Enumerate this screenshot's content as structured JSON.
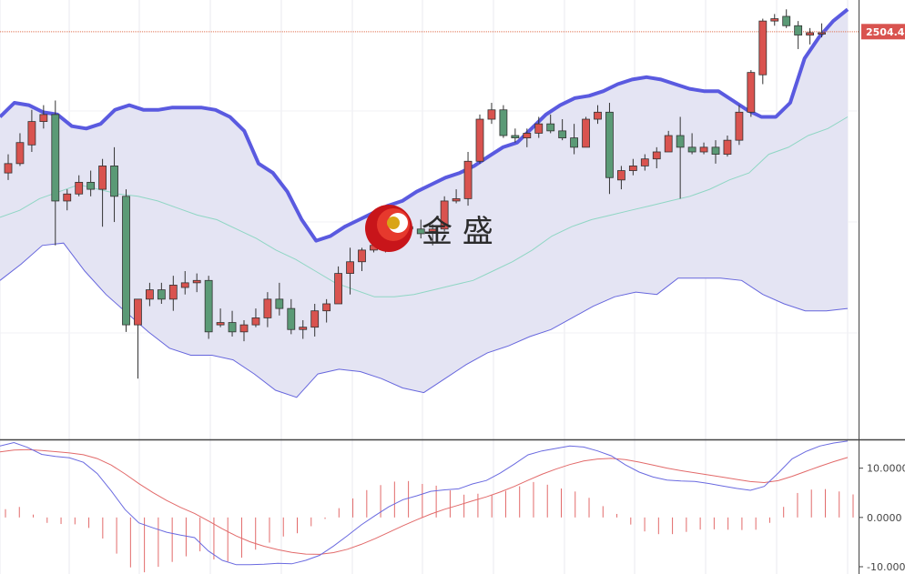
{
  "watermark": {
    "text": "金 盛"
  },
  "colors": {
    "up": "#d9534f",
    "down": "#5b9a76",
    "band_fill": "#e4e4f3",
    "upper_band": "#5a5ae0",
    "lower_band": "#6666dd",
    "middle_band": "#8fd6c4",
    "price_line": "#e07050",
    "price_tag": "#d9534f",
    "dif_line": "#6a6ae0",
    "dea_line": "#e26a6a",
    "hist": "#e26a6a",
    "grid": "#e9e9ef",
    "axis": "#444444"
  },
  "chart_data": [
    {
      "type": "candlestick",
      "title": "",
      "current_price_label": "2504.44",
      "current_price": 2504.44,
      "y_range": [
        2330,
        2518
      ],
      "overlays": [
        "bollinger_upper",
        "bollinger_middle",
        "bollinger_lower"
      ],
      "candles": [
        [
          2444,
          2452,
          2441,
          2448
        ],
        [
          2448,
          2461,
          2447,
          2457
        ],
        [
          2456,
          2471,
          2453,
          2466
        ],
        [
          2466,
          2473,
          2463,
          2469
        ],
        [
          2469,
          2475,
          2413,
          2432
        ],
        [
          2432,
          2437,
          2428,
          2435
        ],
        [
          2435,
          2443,
          2434,
          2440
        ],
        [
          2440,
          2445,
          2434,
          2437
        ],
        [
          2437,
          2450,
          2421,
          2447
        ],
        [
          2447,
          2455,
          2423,
          2434
        ],
        [
          2434,
          2437,
          2376,
          2379
        ],
        [
          2379,
          2389,
          2356,
          2390
        ],
        [
          2390,
          2397,
          2387,
          2394
        ],
        [
          2394,
          2397,
          2388,
          2390
        ],
        [
          2390,
          2400,
          2385,
          2396
        ],
        [
          2395,
          2402,
          2392,
          2397
        ],
        [
          2397,
          2401,
          2393,
          2398
        ],
        [
          2398,
          2400,
          2373,
          2376
        ],
        [
          2379,
          2386,
          2378,
          2380
        ],
        [
          2380,
          2385,
          2374,
          2376
        ],
        [
          2376,
          2381,
          2372,
          2379
        ],
        [
          2379,
          2386,
          2378,
          2382
        ],
        [
          2382,
          2393,
          2378,
          2390
        ],
        [
          2390,
          2397,
          2383,
          2386
        ],
        [
          2386,
          2390,
          2375,
          2377
        ],
        [
          2377,
          2381,
          2373,
          2378
        ],
        [
          2378,
          2388,
          2374,
          2385
        ],
        [
          2385,
          2390,
          2380,
          2388
        ],
        [
          2388,
          2404,
          2389,
          2401
        ],
        [
          2401,
          2412,
          2392,
          2406
        ],
        [
          2406,
          2412,
          2402,
          2411
        ],
        [
          2411,
          2416,
          2410,
          2413
        ],
        [
          2413,
          2421,
          2410,
          2418
        ],
        [
          2418,
          2422,
          2413,
          2421
        ],
        [
          2421,
          2425,
          2419,
          2420
        ],
        [
          2420,
          2424,
          2416,
          2418
        ],
        [
          2419,
          2422,
          2413,
          2420
        ],
        [
          2420,
          2434,
          2419,
          2432
        ],
        [
          2432,
          2437,
          2431,
          2433
        ],
        [
          2433,
          2453,
          2430,
          2449
        ],
        [
          2449,
          2469,
          2448,
          2467
        ],
        [
          2467,
          2474,
          2465,
          2471
        ],
        [
          2471,
          2473,
          2459,
          2460
        ],
        [
          2460,
          2463,
          2457,
          2459
        ],
        [
          2459,
          2463,
          2455,
          2461
        ],
        [
          2461,
          2468,
          2459,
          2465
        ],
        [
          2465,
          2469,
          2461,
          2462
        ],
        [
          2462,
          2467,
          2458,
          2459
        ],
        [
          2459,
          2465,
          2452,
          2455
        ],
        [
          2455,
          2468,
          2455,
          2467
        ],
        [
          2467,
          2473,
          2465,
          2470
        ],
        [
          2470,
          2474,
          2435,
          2442
        ],
        [
          2441,
          2447,
          2437,
          2445
        ],
        [
          2445,
          2450,
          2443,
          2447
        ],
        [
          2447,
          2452,
          2445,
          2450
        ],
        [
          2450,
          2455,
          2446,
          2453
        ],
        [
          2453,
          2462,
          2453,
          2460
        ],
        [
          2460,
          2468,
          2433,
          2455
        ],
        [
          2455,
          2461,
          2452,
          2453
        ],
        [
          2453,
          2457,
          2452,
          2455
        ],
        [
          2455,
          2458,
          2448,
          2452
        ],
        [
          2452,
          2460,
          2451,
          2458
        ],
        [
          2458,
          2473,
          2456,
          2470
        ],
        [
          2470,
          2488,
          2468,
          2487
        ],
        [
          2486,
          2510,
          2482,
          2509
        ],
        [
          2509,
          2512,
          2507,
          2510
        ],
        [
          2511,
          2514,
          2506,
          2507
        ],
        [
          2507,
          2509,
          2497,
          2503
        ],
        [
          2503,
          2506,
          2499,
          2504
        ],
        [
          2504,
          2508,
          2502,
          2504
        ]
      ],
      "upper_band": [
        2468,
        2474,
        2473,
        2470,
        2469,
        2464,
        2463,
        2465,
        2471,
        2473,
        2471,
        2471,
        2472,
        2472,
        2472,
        2471,
        2468,
        2462,
        2448,
        2444,
        2436,
        2424,
        2415,
        2417,
        2421,
        2424,
        2427,
        2430,
        2432,
        2436,
        2439,
        2442,
        2444,
        2447,
        2451,
        2455,
        2457,
        2463,
        2469,
        2473,
        2476,
        2477,
        2479,
        2482,
        2484,
        2485,
        2484,
        2482,
        2480,
        2479,
        2479,
        2475,
        2471,
        2468,
        2468,
        2474,
        2493,
        2502,
        2509,
        2514
      ],
      "middle_band": [
        2425,
        2428,
        2433,
        2436,
        2439,
        2437,
        2435,
        2434,
        2432,
        2429,
        2426,
        2424,
        2420,
        2416,
        2411,
        2407,
        2402,
        2397,
        2394,
        2391,
        2391,
        2392,
        2394,
        2396,
        2398,
        2402,
        2406,
        2411,
        2417,
        2421,
        2424,
        2426,
        2428,
        2430,
        2432,
        2434,
        2437,
        2441,
        2444,
        2452,
        2455,
        2460,
        2463,
        2468
      ],
      "lower_band": [
        2398,
        2405,
        2413,
        2414,
        2402,
        2392,
        2384,
        2376,
        2369,
        2366,
        2366,
        2364,
        2358,
        2351,
        2348,
        2358,
        2360,
        2359,
        2356,
        2352,
        2350,
        2356,
        2362,
        2367,
        2370,
        2374,
        2377,
        2382,
        2387,
        2391,
        2393,
        2392,
        2399,
        2399,
        2399,
        2398,
        2392,
        2388,
        2385,
        2385,
        2386
      ],
      "markers": [
        {
          "type": "hline",
          "y": 2504.44,
          "label": "2504.44"
        }
      ]
    },
    {
      "type": "macd",
      "y_range": [
        -10,
        14
      ],
      "y_ticks": [
        {
          "value": 10,
          "label": "10.0000"
        },
        {
          "value": 0,
          "label": "0.0000"
        },
        {
          "value": -10,
          "label": "-10.0000"
        }
      ],
      "dif": [
        14.5,
        15.2,
        14.2,
        12.8,
        12.4,
        12.1,
        11.2,
        8.9,
        5.4,
        1.6,
        -1.1,
        -2.1,
        -3.0,
        -3.6,
        -4.1,
        -6.8,
        -8.7,
        -9.6,
        -9.6,
        -9.5,
        -9.3,
        -9.4,
        -8.7,
        -7.7,
        -5.8,
        -3.7,
        -1.5,
        0.4,
        2.2,
        3.6,
        4.4,
        5.3,
        5.6,
        5.8,
        6.8,
        7.5,
        9.0,
        10.8,
        12.7,
        13.5,
        14.0,
        14.5,
        14.3,
        13.5,
        12.5,
        10.7,
        9.2,
        8.2,
        7.6,
        7.4,
        7.3,
        6.9,
        6.4,
        5.9,
        5.5,
        6.3,
        9.0,
        11.9,
        13.4,
        14.5,
        15.1,
        15.5
      ]
    }
  ]
}
